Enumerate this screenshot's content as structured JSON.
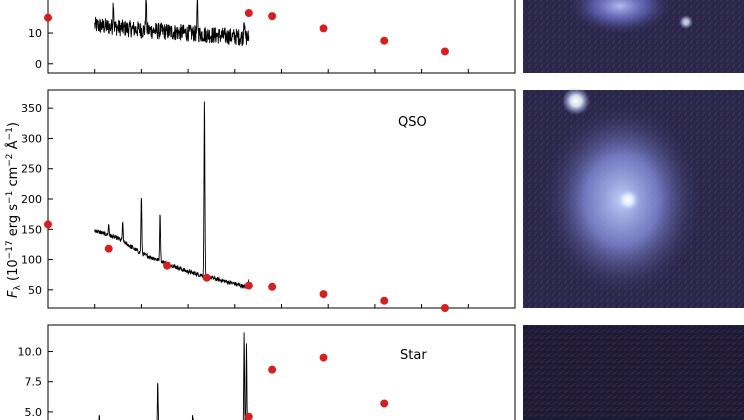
{
  "figure": {
    "ylabel": "F_λ (10^-17 erg s^-1 cm^-2 Å^-1)",
    "ylabel_parts": {
      "f": "F",
      "sub": "λ",
      "open": " (10",
      "exp1": "−17",
      "erg": " erg s",
      "exp2": "−1",
      "cm": " cm",
      "exp3": "−2",
      "ang": " Å",
      "exp4": "−1",
      "close": ")"
    }
  },
  "colors": {
    "spectrum": "#000000",
    "photometry": "#d62020",
    "axes": "#000000"
  },
  "chart_data": [
    {
      "type": "line",
      "panel": "top",
      "label": "",
      "yticks": [
        0,
        10
      ],
      "ylim": [
        -3,
        24
      ],
      "xlim": [
        0,
        10
      ],
      "spectrum": {
        "x_range": [
          1.0,
          4.3
        ],
        "continuum": [
          [
            1.0,
            12.5
          ],
          [
            2.0,
            11.0
          ],
          [
            3.0,
            10.0
          ],
          [
            3.8,
            9.0
          ],
          [
            4.3,
            8.5
          ]
        ],
        "noise": 2.8,
        "lines": [
          [
            1.4,
            21
          ],
          [
            2.1,
            22
          ],
          [
            3.2,
            20
          ],
          [
            4.2,
            16
          ]
        ]
      },
      "photometry": {
        "x": [
          0.0,
          4.3,
          4.8,
          5.9,
          7.2,
          8.5
        ],
        "y": [
          15,
          16.5,
          15.5,
          11.5,
          7.5,
          4
        ]
      }
    },
    {
      "type": "line",
      "panel": "middle",
      "label": "QSO",
      "yticks": [
        50,
        100,
        150,
        200,
        250,
        300,
        350
      ],
      "ylim": [
        20,
        380
      ],
      "xlim": [
        0,
        10
      ],
      "spectrum": {
        "x_range": [
          1.0,
          4.3
        ],
        "continuum": [
          [
            1.0,
            148
          ],
          [
            1.5,
            135
          ],
          [
            2.0,
            110
          ],
          [
            2.5,
            95
          ],
          [
            3.0,
            80
          ],
          [
            3.5,
            70
          ],
          [
            4.0,
            60
          ],
          [
            4.3,
            53
          ]
        ],
        "noise": 3.5,
        "lines": [
          [
            1.3,
            158
          ],
          [
            1.6,
            160
          ],
          [
            2.0,
            205
          ],
          [
            2.4,
            178
          ],
          [
            3.35,
            365
          ],
          [
            4.3,
            70
          ]
        ]
      },
      "photometry": {
        "x": [
          0.0,
          1.3,
          2.55,
          3.4,
          4.3,
          4.8,
          5.9,
          7.2,
          8.5
        ],
        "y": [
          158,
          118,
          90,
          70,
          57,
          55,
          43,
          32,
          20
        ]
      }
    },
    {
      "type": "line",
      "panel": "bottom",
      "label": "Star",
      "yticks": [
        5.0,
        7.5,
        10.0
      ],
      "ytick_labels": [
        "5.0",
        "7.5",
        "10.0"
      ],
      "ylim": [
        3.5,
        12.2
      ],
      "xlim": [
        0,
        10
      ],
      "spectrum": {
        "x_range": [
          1.0,
          4.3
        ],
        "continuum": [
          [
            1.0,
            3.2
          ],
          [
            4.3,
            3.2
          ]
        ],
        "noise": 0.4,
        "lines": [
          [
            1.05,
            4.6
          ],
          [
            1.1,
            4.5
          ],
          [
            2.35,
            7.6
          ],
          [
            3.1,
            4.8
          ],
          [
            4.2,
            11.4
          ],
          [
            4.25,
            10.5
          ],
          [
            4.35,
            9.2
          ]
        ]
      },
      "photometry": {
        "x": [
          4.3,
          4.8,
          5.9,
          7.2
        ],
        "y": [
          4.6,
          8.5,
          9.5,
          5.7
        ]
      }
    }
  ],
  "thumbnails": [
    {
      "name": "galaxy-image-top",
      "background": "#2a2648"
    },
    {
      "name": "qso-image",
      "background": "#2e2c5a"
    },
    {
      "name": "star-image",
      "background": "#1f1a33"
    }
  ]
}
